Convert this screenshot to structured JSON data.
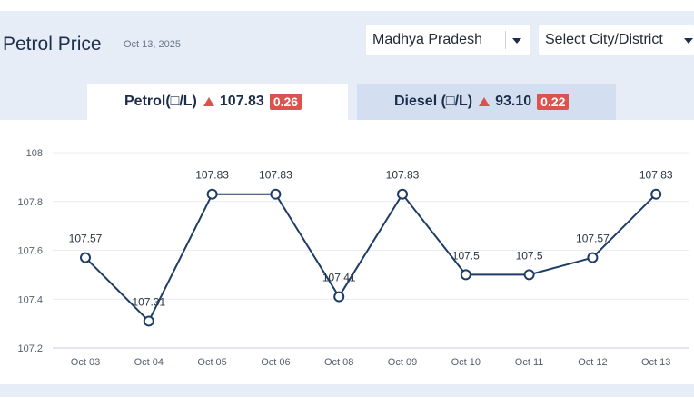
{
  "header": {
    "title": "Petrol Price",
    "date": "Oct 13, 2025"
  },
  "state_select": {
    "label": "Madhya Pradesh"
  },
  "city_select": {
    "label": "Select City/District"
  },
  "tabs": [
    {
      "label": "Petrol(□/L)",
      "price": "107.83",
      "change": "0.26",
      "direction": "up"
    },
    {
      "label": "Diesel (□/L)",
      "price": "93.10",
      "change": "0.22",
      "direction": "up"
    }
  ],
  "colors": {
    "line": "#1d3c66",
    "badge": "#d9534f",
    "active_tab": "#ffffff",
    "inactive_tab": "#d3def1",
    "background": "#e6edf7"
  },
  "icons": {
    "dropdown": "caret-down-icon",
    "trend": "triangle-up-icon"
  },
  "chart_data": {
    "type": "line",
    "categories": [
      "Oct 03",
      "Oct 04",
      "Oct 05",
      "Oct 06",
      "Oct 08",
      "Oct 09",
      "Oct 10",
      "Oct 11",
      "Oct 12",
      "Oct 13"
    ],
    "values": [
      107.57,
      107.31,
      107.83,
      107.83,
      107.41,
      107.83,
      107.5,
      107.5,
      107.57,
      107.83
    ],
    "data_labels": [
      "107.57",
      "107.31",
      "107.83",
      "107.83",
      "107.41",
      "107.83",
      "107.5",
      "107.5",
      "107.57",
      "107.83"
    ],
    "y_ticks": [
      "108",
      "107.8",
      "107.6",
      "107.4",
      "107.2"
    ],
    "ylim": [
      107.2,
      108
    ],
    "grid": true,
    "markers": "hollow-circle"
  }
}
